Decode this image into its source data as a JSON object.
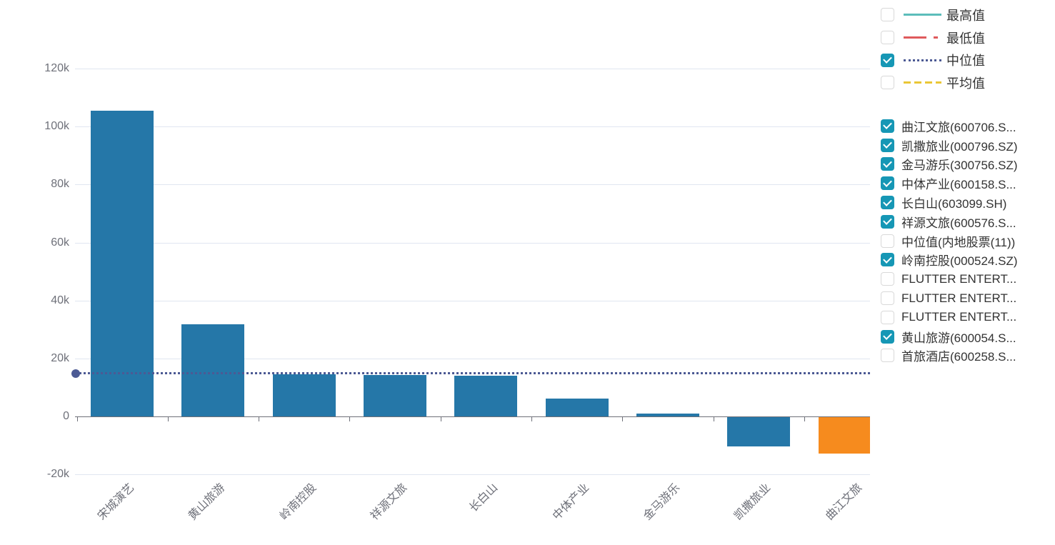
{
  "chart_data": {
    "type": "bar",
    "title": "",
    "categories": [
      "宋城演艺",
      "黄山旅游",
      "岭南控股",
      "祥源文旅",
      "长白山",
      "中体产业",
      "金马游乐",
      "凯撒旅业",
      "曲江文旅"
    ],
    "values": [
      105400,
      31700,
      14500,
      14300,
      14100,
      6200,
      1000,
      -10300,
      -12900
    ],
    "bar_colors": [
      "#2577a8",
      "#2577a8",
      "#2577a8",
      "#2577a8",
      "#2577a8",
      "#2577a8",
      "#2577a8",
      "#2577a8",
      "#f68b1e"
    ],
    "yticks": [
      {
        "value": 120000,
        "label": "120k"
      },
      {
        "value": 100000,
        "label": "100k"
      },
      {
        "value": 80000,
        "label": "80k"
      },
      {
        "value": 60000,
        "label": "60k"
      },
      {
        "value": 40000,
        "label": "40k"
      },
      {
        "value": 20000,
        "label": "20k"
      },
      {
        "value": 0,
        "label": "0"
      },
      {
        "value": -20000,
        "label": "-20k"
      }
    ],
    "ylim": [
      -20000,
      120000
    ],
    "xlabel": "",
    "ylabel": "",
    "xlabel_rotation": 45,
    "grid": true,
    "median_line": {
      "name": "中位值",
      "value": 14700,
      "color": "#4c5a94",
      "style": "dotted"
    }
  },
  "colors": {
    "bar": "#2577a8",
    "bar_highlight": "#f68b1e",
    "grid_line": "#e0e6f1",
    "axis": "#6e7079",
    "checkbox_checked": "#1697b5",
    "text": "#333333"
  },
  "legend": {
    "items": [
      {
        "label": "最高值",
        "checked": false,
        "line_style": "solid",
        "color": "#5cbdba"
      },
      {
        "label": "最低值",
        "checked": false,
        "line_style": "dashdot",
        "color": "#df5a5c"
      },
      {
        "label": "中位值",
        "checked": true,
        "line_style": "dotted",
        "color": "#4c5a94"
      },
      {
        "label": "平均值",
        "checked": false,
        "line_style": "dashed",
        "color": "#eac736"
      }
    ]
  },
  "series_list": {
    "items": [
      {
        "label": "曲江文旅(600706.S...",
        "checked": true
      },
      {
        "label": "凯撒旅业(000796.SZ)",
        "checked": true
      },
      {
        "label": "金马游乐(300756.SZ)",
        "checked": true
      },
      {
        "label": "中体产业(600158.S...",
        "checked": true
      },
      {
        "label": "长白山(603099.SH)",
        "checked": true
      },
      {
        "label": "祥源文旅(600576.S...",
        "checked": true
      },
      {
        "label": "中位值(内地股票(11))",
        "checked": false
      },
      {
        "label": "岭南控股(000524.SZ)",
        "checked": true
      },
      {
        "label": "FLUTTER ENTERT...",
        "checked": false
      },
      {
        "label": "FLUTTER ENTERT...",
        "checked": false
      },
      {
        "label": "FLUTTER ENTERT...",
        "checked": false
      },
      {
        "label": "黄山旅游(600054.S...",
        "checked": true
      },
      {
        "label": "首旅酒店(600258.S...",
        "checked": false
      }
    ]
  }
}
